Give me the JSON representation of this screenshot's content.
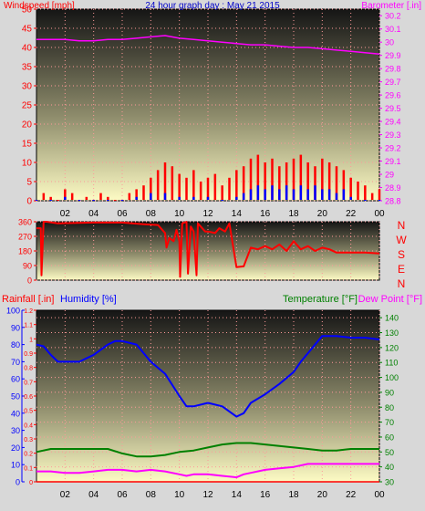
{
  "colors": {
    "frame": "#d8d8d8",
    "wind": "#ff0000",
    "gust_blue": "#0000ff",
    "baro": "#ff00ff",
    "rain": "#ff0000",
    "humidity": "#0000ff",
    "temperature": "#008000",
    "dewpoint": "#ff00ff",
    "spot": "#ffff00",
    "grid_dot": "#ff9999"
  },
  "chart_data": [
    {
      "type": "line",
      "panel": "wind-baro",
      "title": "24 hour graph day : May 21 2015",
      "ylabel_left": "Windspeed [mph]",
      "ylabel_right": "Barometer [.in]",
      "ylim_left": [
        0,
        50
      ],
      "ylim_right": [
        28.8,
        30.25
      ],
      "yticks_left": [
        "0",
        "5",
        "10",
        "15",
        "20",
        "25",
        "30",
        "35",
        "40",
        "45",
        "50"
      ],
      "yticks_right": [
        "28.8",
        "28.9",
        "29",
        "29.1",
        "29.2",
        "29.3",
        "29.4",
        "29.5",
        "29.6",
        "29.7",
        "29.8",
        "29.9",
        "30",
        "30.1",
        "30.2"
      ],
      "xticks": [
        "02",
        "04",
        "06",
        "08",
        "10",
        "12",
        "14",
        "16",
        "18",
        "20",
        "22",
        "00"
      ],
      "xlim": [
        0,
        24
      ],
      "series": [
        {
          "name": "Windspeed",
          "axis": "left",
          "x": [
            0,
            0.5,
            1,
            1.5,
            2,
            2.5,
            3,
            3.5,
            4,
            4.5,
            5,
            5.5,
            6,
            6.5,
            7,
            7.5,
            8,
            8.5,
            9,
            9.5,
            10,
            10.5,
            11,
            11.5,
            12,
            12.5,
            13,
            13.5,
            14,
            14.5,
            15,
            15.5,
            16,
            16.5,
            17,
            17.5,
            18,
            18.5,
            19,
            19.5,
            20,
            20.5,
            21,
            21.5,
            22,
            22.5,
            23,
            23.5,
            24
          ],
          "values": [
            0,
            2,
            1,
            0,
            3,
            2,
            0,
            1,
            0,
            2,
            1,
            0,
            0,
            2,
            3,
            4,
            6,
            8,
            10,
            9,
            7,
            6,
            8,
            5,
            6,
            7,
            4,
            6,
            8,
            9,
            11,
            12,
            10,
            11,
            9,
            10,
            11,
            12,
            10,
            9,
            11,
            10,
            9,
            8,
            6,
            5,
            4,
            2,
            3
          ]
        },
        {
          "name": "Gust",
          "axis": "left",
          "x": [
            0,
            1,
            2,
            3,
            4,
            5,
            6,
            7,
            8,
            9,
            10,
            11,
            12,
            13,
            14,
            14.5,
            15,
            15.5,
            16,
            16.5,
            17,
            17.5,
            18,
            18.5,
            19,
            19.5,
            20,
            20.5,
            21,
            21.5,
            22,
            23,
            24
          ],
          "values": [
            0,
            0,
            1,
            0,
            0,
            0,
            0,
            1,
            2,
            2,
            1,
            1,
            1,
            0,
            1,
            2,
            3,
            4,
            3,
            4,
            3,
            4,
            3,
            4,
            3,
            4,
            3,
            3,
            2,
            3,
            1,
            0,
            0
          ]
        },
        {
          "name": "Barometer",
          "axis": "right",
          "x": [
            0,
            1,
            2,
            3,
            4,
            5,
            6,
            7,
            8,
            9,
            10,
            11,
            12,
            13,
            14,
            15,
            16,
            17,
            18,
            19,
            20,
            21,
            22,
            23,
            24
          ],
          "values": [
            30.02,
            30.02,
            30.02,
            30.01,
            30.01,
            30.02,
            30.02,
            30.03,
            30.04,
            30.05,
            30.03,
            30.02,
            30.01,
            30.0,
            29.99,
            29.98,
            29.98,
            29.97,
            29.96,
            29.96,
            29.95,
            29.94,
            29.93,
            29.92,
            29.91
          ]
        }
      ]
    },
    {
      "type": "line",
      "panel": "direction",
      "ylim": [
        0,
        360
      ],
      "yticks": [
        "0",
        "90",
        "180",
        "270",
        "360"
      ],
      "compass": [
        "N",
        "W",
        "S",
        "E",
        "N"
      ],
      "xlim": [
        0,
        24
      ],
      "series": [
        {
          "name": "Wind Direction",
          "x": [
            0,
            0.3,
            0.35,
            0.5,
            0.7,
            1.5,
            4,
            6,
            7.5,
            8.5,
            9,
            9.1,
            9.3,
            9.6,
            9.8,
            10,
            10.05,
            10.2,
            10.5,
            10.6,
            10.8,
            11,
            11.2,
            11.3,
            11.8,
            12,
            12.5,
            12.8,
            13.2,
            13.5,
            14,
            14.5,
            15,
            15.5,
            16,
            16.5,
            17,
            17.5,
            18,
            18.5,
            19,
            19.5,
            20,
            20.5,
            21,
            22,
            23,
            24
          ],
          "values": [
            320,
            320,
            30,
            360,
            360,
            350,
            355,
            355,
            345,
            340,
            290,
            200,
            260,
            240,
            310,
            240,
            20,
            350,
            360,
            40,
            330,
            300,
            30,
            350,
            300,
            300,
            290,
            320,
            300,
            350,
            80,
            85,
            200,
            190,
            210,
            190,
            220,
            180,
            240,
            190,
            210,
            180,
            200,
            190,
            170,
            170,
            170,
            165
          ]
        }
      ]
    },
    {
      "type": "line",
      "panel": "rain-hum-temp",
      "ylabel_left1": "Rainfall [.in]",
      "ylabel_left2": "Humidity [%]",
      "ylabel_right1": "Temperature [°F]",
      "ylabel_right2": "Dew Point [°F]",
      "ylim_rain": [
        0,
        1.2
      ],
      "ylim_humidity": [
        0,
        100
      ],
      "ylim_temp": [
        30,
        145
      ],
      "yticks_rain": [
        "0",
        "0.1",
        "0.2",
        "0.3",
        "0.4",
        "0.5",
        "0.6",
        "0.7",
        "0.8",
        "0.9",
        "1",
        "1.1",
        "1.2"
      ],
      "yticks_humidity": [
        "0",
        "10",
        "20",
        "30",
        "40",
        "50",
        "60",
        "70",
        "80",
        "90",
        "100"
      ],
      "yticks_temp": [
        "30",
        "40",
        "50",
        "60",
        "70",
        "80",
        "90",
        "100",
        "110",
        "120",
        "130",
        "140"
      ],
      "xticks": [
        "02",
        "04",
        "06",
        "08",
        "10",
        "12",
        "14",
        "16",
        "18",
        "20",
        "22",
        "00"
      ],
      "xlim": [
        0,
        24
      ],
      "series": [
        {
          "name": "Humidity",
          "axis": "humidity",
          "x": [
            0,
            0.5,
            1,
            1.5,
            2,
            3,
            4,
            5,
            5.5,
            6,
            7,
            7.5,
            8,
            9,
            10,
            10.5,
            11,
            12,
            13,
            14,
            14.5,
            15,
            16,
            17,
            18,
            18.5,
            19,
            20,
            21,
            22,
            23,
            24
          ],
          "values": [
            80,
            79,
            74,
            70,
            70,
            70,
            74,
            80,
            82,
            82,
            80,
            75,
            70,
            63,
            50,
            44,
            44,
            46,
            44,
            38,
            40,
            46,
            51,
            57,
            64,
            70,
            75,
            85,
            85,
            84,
            84,
            83
          ]
        },
        {
          "name": "Temperature",
          "axis": "temp",
          "x": [
            0,
            1,
            2,
            3,
            4,
            5,
            6,
            7,
            8,
            9,
            10,
            11,
            12,
            13,
            14,
            15,
            16,
            17,
            18,
            19,
            20,
            21,
            22,
            23,
            24
          ],
          "values": [
            50,
            52,
            52,
            52,
            52,
            52,
            49,
            47,
            47,
            48,
            50,
            51,
            53,
            55,
            56,
            56,
            55,
            54,
            53,
            52,
            51,
            51,
            52,
            52,
            52
          ],
          "spot_labels": [
            {
              "x": 1.2,
              "text": ""
            },
            {
              "x": 4.5,
              "text": ""
            },
            {
              "x": 20.2,
              "text": ""
            }
          ]
        },
        {
          "name": "Dew Point",
          "axis": "temp",
          "x": [
            0,
            1,
            2,
            3,
            4,
            5,
            6,
            7,
            8,
            9,
            10,
            10.5,
            11,
            12,
            13,
            14,
            14.5,
            15,
            16,
            17,
            18,
            19,
            20,
            21,
            22,
            23,
            24
          ],
          "values": [
            37,
            37,
            36,
            36,
            37,
            38,
            38,
            37,
            38,
            37,
            35,
            34,
            35,
            35,
            34,
            33,
            35,
            36,
            38,
            39,
            40,
            42,
            42,
            42,
            42,
            42,
            42
          ],
          "spot_labels": [
            {
              "x": 1.1,
              "text": ""
            },
            {
              "x": 8.6,
              "text": ""
            }
          ]
        },
        {
          "name": "Rainfall",
          "axis": "rain",
          "x": [
            0,
            24
          ],
          "values": [
            0,
            0
          ]
        }
      ]
    }
  ]
}
